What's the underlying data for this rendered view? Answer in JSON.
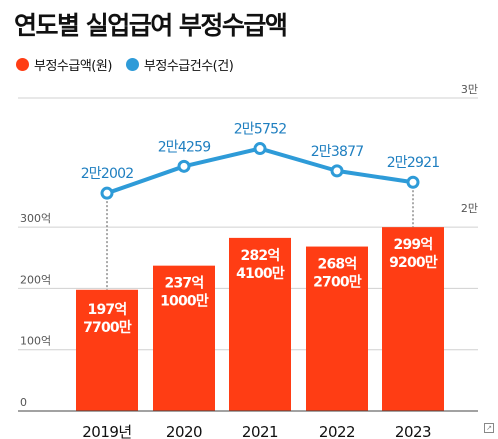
{
  "title": "연도별 실업급여 부정수급액",
  "legend": [
    {
      "label": "부정수급액(원)",
      "color": "#ff3d14"
    },
    {
      "label": "부정수급건수(건)",
      "color": "#2e9bd8"
    }
  ],
  "chart_data": {
    "type": "bar",
    "categories": [
      "2019년",
      "2020",
      "2021",
      "2022",
      "2023"
    ],
    "series": [
      {
        "name": "부정수급액(원)",
        "type": "bar",
        "axis": "left",
        "color": "#ff3d14",
        "values": [
          19777000000,
          23710000000,
          28241000000,
          26827000000,
          29992000000
        ],
        "labels": [
          [
            "197억",
            "7700만"
          ],
          [
            "237억",
            "1000만"
          ],
          [
            "282억",
            "4100만"
          ],
          [
            "268억",
            "2700만"
          ],
          [
            "299억",
            "9200만"
          ]
        ]
      },
      {
        "name": "부정수급건수(건)",
        "type": "line",
        "axis": "right",
        "color": "#2e9bd8",
        "values": [
          22002,
          24259,
          25752,
          23877,
          22921
        ],
        "labels": [
          "2만2002",
          "2만4259",
          "2만5752",
          "2만3877",
          "2만2921"
        ]
      }
    ],
    "left_axis": {
      "ticks": [
        0,
        10000000000,
        20000000000,
        30000000000
      ],
      "tick_labels": [
        "0",
        "100억",
        "200억",
        "300억"
      ],
      "range": [
        0,
        35000000000
      ]
    },
    "right_axis": {
      "ticks": [
        20000,
        30000
      ],
      "tick_labels": [
        "2만",
        "3만"
      ]
    },
    "grid": true
  }
}
